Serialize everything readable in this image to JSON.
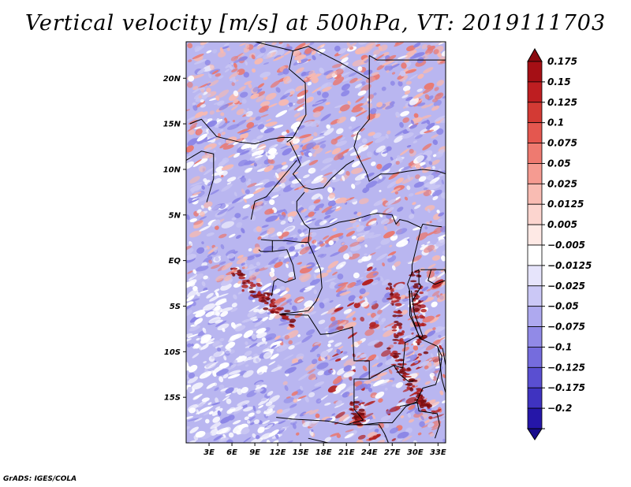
{
  "title": "Vertical velocity [m/s] at 500hPa, VT: 2019111703",
  "credit": "GrADS: IGES/COLA",
  "map": {
    "lat_range": [
      -20,
      24
    ],
    "lon_range": [
      0,
      34
    ],
    "lat_ticks": [
      {
        "value": 20,
        "label": "20N"
      },
      {
        "value": 15,
        "label": "15N"
      },
      {
        "value": 10,
        "label": "10N"
      },
      {
        "value": 5,
        "label": "5N"
      },
      {
        "value": 0,
        "label": "EQ"
      },
      {
        "value": -5,
        "label": "5S"
      },
      {
        "value": -10,
        "label": "10S"
      },
      {
        "value": -15,
        "label": "15S"
      }
    ],
    "lon_ticks": [
      {
        "value": 3,
        "label": "3E"
      },
      {
        "value": 6,
        "label": "6E"
      },
      {
        "value": 9,
        "label": "9E"
      },
      {
        "value": 12,
        "label": "12E"
      },
      {
        "value": 15,
        "label": "15E"
      },
      {
        "value": 18,
        "label": "18E"
      },
      {
        "value": 21,
        "label": "21E"
      },
      {
        "value": 24,
        "label": "24E"
      },
      {
        "value": 27,
        "label": "27E"
      },
      {
        "value": 30,
        "label": "30E"
      },
      {
        "value": 33,
        "label": "33E"
      }
    ],
    "field_colors": {
      "strong_up": "#b22222",
      "up": "#e87a74",
      "weak_up": "#f6b9b2",
      "neutral": "#ffffff",
      "weak_down": "#c9c6f3",
      "down": "#8c86e6",
      "strong_down": "#4a3ec9"
    }
  },
  "colorbar": {
    "levels": [
      {
        "label": "0.175",
        "color": "#a50f15"
      },
      {
        "label": "0.15",
        "color": "#be1e21"
      },
      {
        "label": "0.125",
        "color": "#d33a34"
      },
      {
        "label": "0.1",
        "color": "#e4574f"
      },
      {
        "label": "0.075",
        "color": "#ee7a70"
      },
      {
        "label": "0.05",
        "color": "#f59b91"
      },
      {
        "label": "0.025",
        "color": "#f9bcb3"
      },
      {
        "label": "0.0125",
        "color": "#fcd5cf"
      },
      {
        "label": "0.005",
        "color": "#fee9e5"
      },
      {
        "label": "−0.005",
        "color": "#ffffff"
      },
      {
        "label": "−0.0125",
        "color": "#e6e4fb"
      },
      {
        "label": "−0.025",
        "color": "#cbc8f6"
      },
      {
        "label": "−0.05",
        "color": "#aea9ef"
      },
      {
        "label": "−0.075",
        "color": "#918ae7"
      },
      {
        "label": "−0.1",
        "color": "#756cdd"
      },
      {
        "label": "−0.125",
        "color": "#5a4fd1"
      },
      {
        "label": "−0.175",
        "color": "#3f33c0"
      },
      {
        "label": "−0.2",
        "color": "#2516a8"
      }
    ],
    "top_arrow_color": "#8b0a0f",
    "bottom_arrow_color": "#180d8c"
  }
}
